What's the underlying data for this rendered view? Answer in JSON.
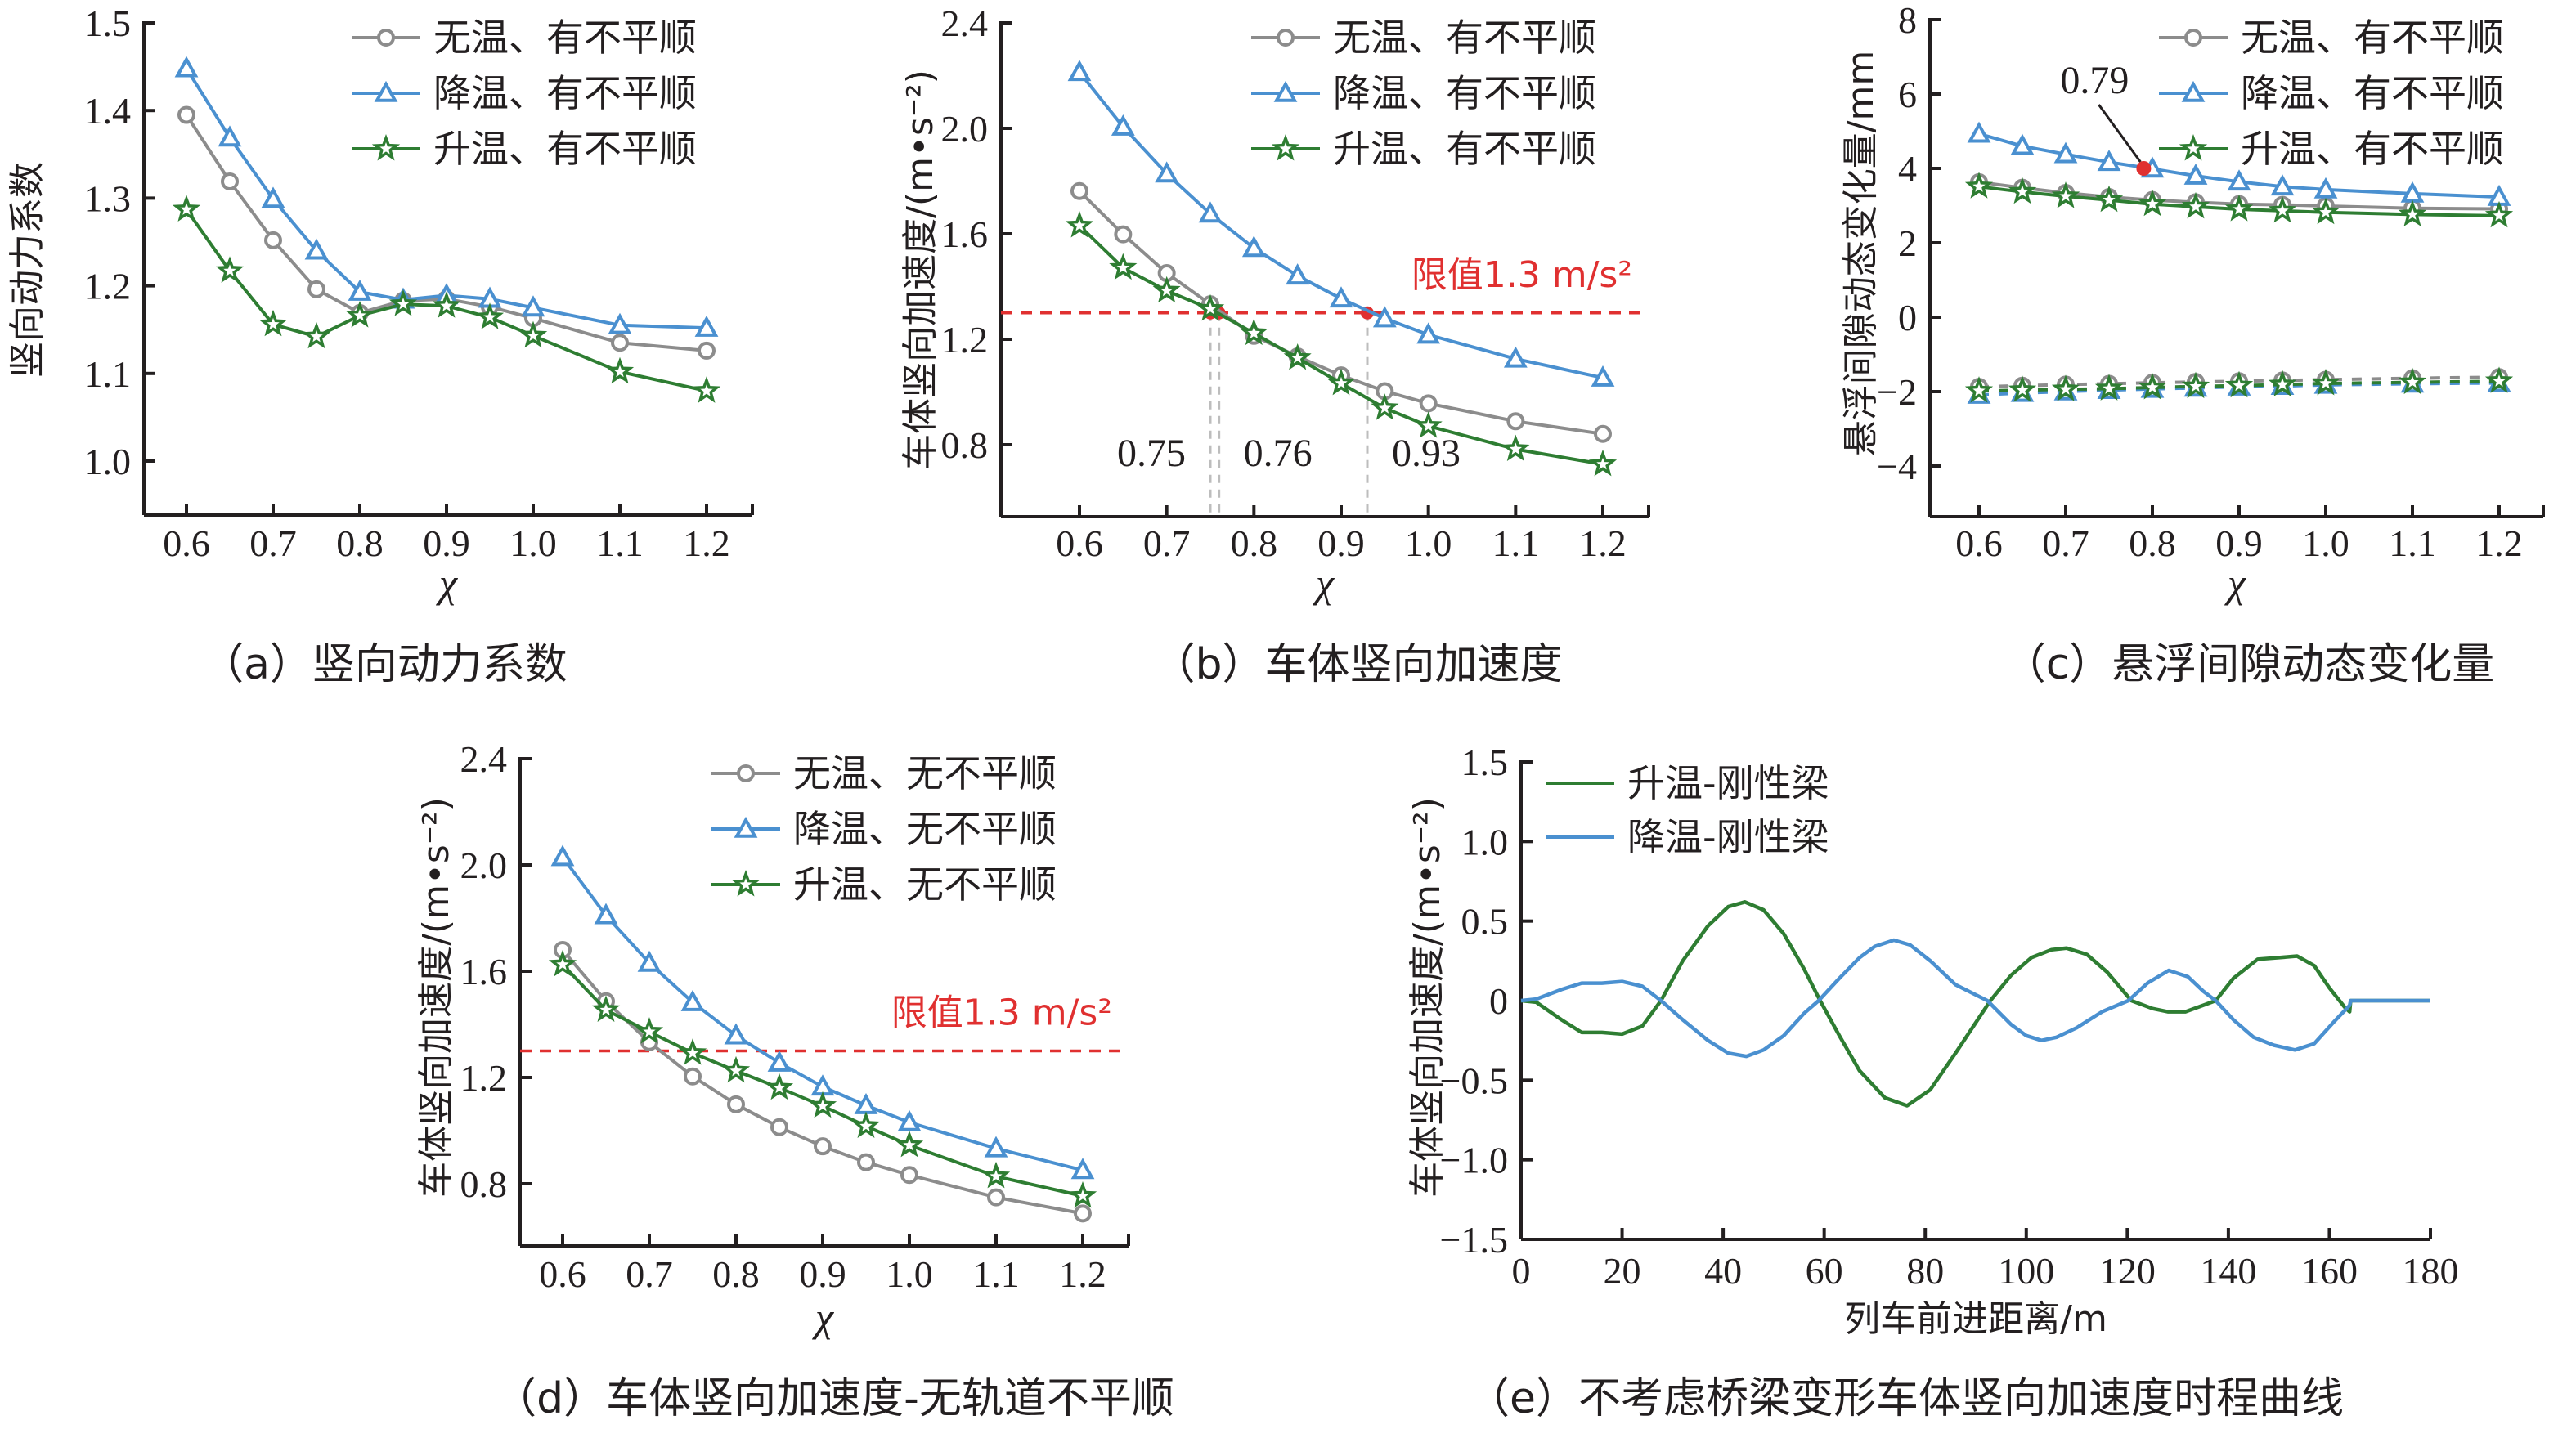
{
  "colors": {
    "gray": "#8c8c8c",
    "blue": "#4a90d0",
    "green": "#2e7d32",
    "red": "#e03030",
    "guide": "#bdbdbd",
    "axis": "#231f20"
  },
  "chart_data": [
    {
      "id": "a",
      "type": "line",
      "title": "（a）竖向动力系数",
      "xlabel": "χ",
      "ylabel": "竖向动力系数",
      "x": [
        0.6,
        0.65,
        0.7,
        0.75,
        0.8,
        0.85,
        0.9,
        0.95,
        1.0,
        1.1,
        1.2
      ],
      "xticks": [
        "0.6",
        "0.7",
        "0.8",
        "0.9",
        "1.0",
        "1.1",
        "1.2"
      ],
      "xtick_values": [
        0.6,
        0.7,
        0.8,
        0.9,
        1.0,
        1.1,
        1.2
      ],
      "xlim": [
        0.55,
        1.25
      ],
      "ylim": [
        0.95,
        1.5
      ],
      "yticks": [
        "1.0",
        "1.1",
        "1.2",
        "1.3",
        "1.4",
        "1.5"
      ],
      "ytick_values": [
        1.0,
        1.1,
        1.2,
        1.3,
        1.4,
        1.5
      ],
      "legend_position": "top-right",
      "grid": false,
      "series": [
        {
          "name": "无温、有不平顺",
          "color": "gray",
          "marker": "circle",
          "values": [
            1.395,
            1.319,
            1.252,
            1.196,
            1.169,
            1.183,
            1.185,
            1.176,
            1.163,
            1.135,
            1.126
          ]
        },
        {
          "name": "降温、有不平顺",
          "color": "blue",
          "marker": "triangle",
          "values": [
            1.448,
            1.369,
            1.299,
            1.24,
            1.193,
            1.184,
            1.189,
            1.185,
            1.175,
            1.155,
            1.152
          ]
        },
        {
          "name": "升温、有不平顺",
          "color": "green",
          "marker": "star",
          "values": [
            1.287,
            1.217,
            1.156,
            1.142,
            1.166,
            1.179,
            1.177,
            1.164,
            1.143,
            1.102,
            1.08
          ]
        }
      ]
    },
    {
      "id": "b",
      "type": "line",
      "title": "（b）车体竖向加速度",
      "xlabel": "χ",
      "ylabel": "车体竖向加速度/(m•s⁻²)",
      "x": [
        0.6,
        0.65,
        0.7,
        0.75,
        0.8,
        0.85,
        0.9,
        0.95,
        1.0,
        1.1,
        1.2
      ],
      "xticks": [
        "0.6",
        "0.7",
        "0.8",
        "0.9",
        "1.0",
        "1.1",
        "1.2"
      ],
      "xtick_values": [
        0.6,
        0.7,
        0.8,
        0.9,
        1.0,
        1.1,
        1.2
      ],
      "xlim": [
        0.55,
        1.25
      ],
      "ylim": [
        0.65,
        2.4
      ],
      "yticks": [
        "0.8",
        "1.2",
        "1.6",
        "2.0",
        "2.4"
      ],
      "ytick_values": [
        0.8,
        1.2,
        1.6,
        2.0,
        2.4
      ],
      "legend_position": "top-right",
      "grid": false,
      "limit": {
        "value": 1.3,
        "label": "限值1.3 m/s²"
      },
      "annotations": [
        {
          "x": 0.75,
          "y": 1.3,
          "label": "0.75"
        },
        {
          "x": 0.76,
          "y": 1.3,
          "label": "0.76"
        },
        {
          "x": 0.93,
          "y": 1.3,
          "label": "0.93"
        }
      ],
      "series": [
        {
          "name": "无温、有不平顺",
          "color": "gray",
          "marker": "circle",
          "values": [
            1.762,
            1.598,
            1.451,
            1.333,
            1.213,
            1.135,
            1.063,
            1.003,
            0.957,
            0.889,
            0.841
          ]
        },
        {
          "name": "降温、有不平顺",
          "color": "blue",
          "marker": "triangle",
          "values": [
            2.213,
            2.006,
            1.828,
            1.676,
            1.546,
            1.441,
            1.354,
            1.279,
            1.217,
            1.126,
            1.054
          ]
        },
        {
          "name": "升温、有不平顺",
          "color": "green",
          "marker": "star",
          "values": [
            1.631,
            1.471,
            1.384,
            1.315,
            1.223,
            1.129,
            1.033,
            0.939,
            0.871,
            0.783,
            0.726
          ]
        }
      ]
    },
    {
      "id": "c",
      "type": "line",
      "title": "（c）悬浮间隙动态变化量",
      "xlabel": "χ",
      "ylabel": "悬浮间隙动态变化量/mm",
      "x": [
        0.6,
        0.65,
        0.7,
        0.75,
        0.8,
        0.85,
        0.9,
        0.95,
        1.0,
        1.1,
        1.2
      ],
      "xticks": [
        "0.6",
        "0.7",
        "0.8",
        "0.9",
        "1.0",
        "1.1",
        "1.2"
      ],
      "xtick_values": [
        0.6,
        0.7,
        0.8,
        0.9,
        1.0,
        1.1,
        1.2
      ],
      "xlim": [
        0.55,
        1.25
      ],
      "ylim": [
        -5,
        8
      ],
      "yticks": [
        "−4",
        "−2",
        "0",
        "2",
        "4",
        "6",
        "8"
      ],
      "ytick_values": [
        -4,
        -2,
        0,
        2,
        4,
        6,
        8
      ],
      "legend_position": "top-right",
      "grid": false,
      "annotations": [
        {
          "x": 0.79,
          "y": 4.0,
          "label": "0.79"
        }
      ],
      "series": [
        {
          "name": "无温、有不平顺",
          "color": "gray",
          "marker": "circle",
          "values": [
            3.63,
            3.48,
            3.34,
            3.23,
            3.15,
            3.09,
            3.04,
            3.02,
            2.99,
            2.93,
            2.91
          ]
        },
        {
          "name": "降温、有不平顺",
          "color": "blue",
          "marker": "triangle",
          "values": [
            4.93,
            4.6,
            4.38,
            4.17,
            3.99,
            3.8,
            3.64,
            3.51,
            3.43,
            3.32,
            3.23
          ]
        },
        {
          "name": "升温、有不平顺",
          "color": "green",
          "marker": "star",
          "values": [
            3.51,
            3.37,
            3.25,
            3.15,
            3.04,
            2.97,
            2.9,
            2.86,
            2.82,
            2.76,
            2.73
          ]
        },
        {
          "name": "无温、有不平顺 (下限)",
          "color": "gray",
          "marker": "circle",
          "dashed": true,
          "legend": false,
          "values": [
            -1.87,
            -1.84,
            -1.81,
            -1.79,
            -1.76,
            -1.74,
            -1.72,
            -1.7,
            -1.68,
            -1.64,
            -1.61
          ]
        },
        {
          "name": "降温、有不平顺 (下限)",
          "color": "blue",
          "marker": "triangle",
          "dashed": true,
          "legend": false,
          "values": [
            -2.09,
            -2.04,
            -2.0,
            -1.96,
            -1.93,
            -1.9,
            -1.87,
            -1.85,
            -1.82,
            -1.79,
            -1.77
          ]
        },
        {
          "name": "升温、有不平顺 (下限)",
          "color": "green",
          "marker": "star",
          "dashed": true,
          "legend": false,
          "values": [
            -1.98,
            -1.96,
            -1.94,
            -1.92,
            -1.89,
            -1.86,
            -1.84,
            -1.81,
            -1.78,
            -1.75,
            -1.72
          ]
        }
      ]
    },
    {
      "id": "d",
      "type": "line",
      "title": "（d）车体竖向加速度-无轨道不平顺",
      "xlabel": "χ",
      "ylabel": "车体竖向加速度/(m•s⁻²)",
      "x": [
        0.6,
        0.65,
        0.7,
        0.75,
        0.8,
        0.85,
        0.9,
        0.95,
        1.0,
        1.1,
        1.2
      ],
      "xticks": [
        "0.6",
        "0.7",
        "0.8",
        "0.9",
        "1.0",
        "1.1",
        "1.2"
      ],
      "xtick_values": [
        0.6,
        0.7,
        0.8,
        0.9,
        1.0,
        1.1,
        1.2
      ],
      "xlim": [
        0.55,
        1.25
      ],
      "ylim": [
        0.65,
        2.4
      ],
      "yticks": [
        "0.8",
        "1.2",
        "1.6",
        "2.0",
        "2.4"
      ],
      "ytick_values": [
        0.8,
        1.2,
        1.6,
        2.0,
        2.4
      ],
      "legend_position": "top-right",
      "grid": false,
      "limit": {
        "value": 1.3,
        "label": "限值1.3 m/s²"
      },
      "series": [
        {
          "name": "无温、无不平顺",
          "color": "gray",
          "marker": "circle",
          "values": [
            1.68,
            1.487,
            1.333,
            1.204,
            1.099,
            1.013,
            0.941,
            0.881,
            0.833,
            0.749,
            0.688
          ]
        },
        {
          "name": "降温、无不平顺",
          "color": "blue",
          "marker": "triangle",
          "values": [
            2.029,
            1.81,
            1.631,
            1.483,
            1.358,
            1.255,
            1.165,
            1.095,
            1.031,
            0.933,
            0.851
          ]
        },
        {
          "name": "升温、无不平顺",
          "color": "green",
          "marker": "star",
          "values": [
            1.625,
            1.454,
            1.372,
            1.292,
            1.225,
            1.161,
            1.093,
            1.017,
            0.945,
            0.828,
            0.754
          ]
        }
      ]
    },
    {
      "id": "e",
      "type": "line",
      "title": "（e）不考虑桥梁变形车体竖向加速度时程曲线",
      "xlabel": "列车前进距离/m",
      "ylabel": "车体竖向加速度/(m•s⁻²)",
      "xticks": [
        "0",
        "20",
        "40",
        "60",
        "80",
        "100",
        "120",
        "140",
        "160",
        "180"
      ],
      "xtick_values": [
        0,
        20,
        40,
        60,
        80,
        100,
        120,
        140,
        160,
        180
      ],
      "xlim": [
        0,
        180
      ],
      "ylim": [
        -1.5,
        1.5
      ],
      "yticks": [
        "−1.5",
        "−1.0",
        "−0.5",
        "0",
        "0.5",
        "1.0",
        "1.5"
      ],
      "ytick_values": [
        -1.5,
        -1.0,
        -0.5,
        0,
        0.5,
        1.0,
        1.5
      ],
      "legend_position": "top-left",
      "grid": false,
      "series": [
        {
          "name": "升温-刚性梁",
          "color": "green",
          "marker": "none",
          "x": [
            0,
            3,
            8,
            12,
            16,
            20,
            24,
            27.7,
            32,
            37,
            41,
            44.3,
            48,
            52,
            56,
            59.2,
            63,
            67,
            72,
            76.4,
            81,
            86,
            92.9,
            97,
            101,
            105,
            108,
            112,
            116,
            120.8,
            125,
            128,
            131.5,
            135,
            137.5,
            141,
            145.8,
            150,
            153.6,
            157,
            160,
            163,
            164,
            164.2,
            180
          ],
          "values": [
            0,
            -0.01,
            -0.12,
            -0.2,
            -0.2,
            -0.21,
            -0.16,
            0,
            0.25,
            0.47,
            0.59,
            0.62,
            0.57,
            0.42,
            0.2,
            0,
            -0.22,
            -0.44,
            -0.61,
            -0.66,
            -0.56,
            -0.33,
            0,
            0.16,
            0.27,
            0.32,
            0.33,
            0.29,
            0.18,
            0,
            -0.05,
            -0.07,
            -0.07,
            -0.03,
            0,
            0.14,
            0.26,
            0.27,
            0.28,
            0.22,
            0.08,
            -0.04,
            -0.07,
            0,
            0
          ]
        },
        {
          "name": "降温-刚性梁",
          "color": "blue",
          "marker": "none",
          "x": [
            0,
            3,
            8,
            12,
            16,
            20,
            24,
            27.7,
            32,
            37,
            41,
            44.6,
            48,
            52,
            56,
            58.9,
            63,
            67,
            70,
            73.8,
            77,
            81,
            86,
            92.3,
            97,
            100,
            103,
            106,
            110,
            115,
            120.2,
            124,
            128.2,
            132,
            135,
            137.5,
            141,
            145,
            149,
            153.2,
            157,
            161,
            164,
            164.2,
            180
          ],
          "values": [
            0,
            0.01,
            0.07,
            0.11,
            0.11,
            0.12,
            0.09,
            0,
            -0.12,
            -0.25,
            -0.33,
            -0.35,
            -0.31,
            -0.22,
            -0.08,
            0,
            0.14,
            0.27,
            0.34,
            0.38,
            0.35,
            0.25,
            0.1,
            0,
            -0.15,
            -0.22,
            -0.25,
            -0.23,
            -0.17,
            -0.07,
            0,
            0.11,
            0.19,
            0.15,
            0.06,
            0,
            -0.12,
            -0.23,
            -0.28,
            -0.31,
            -0.27,
            -0.13,
            -0.03,
            0,
            0
          ]
        }
      ]
    }
  ]
}
